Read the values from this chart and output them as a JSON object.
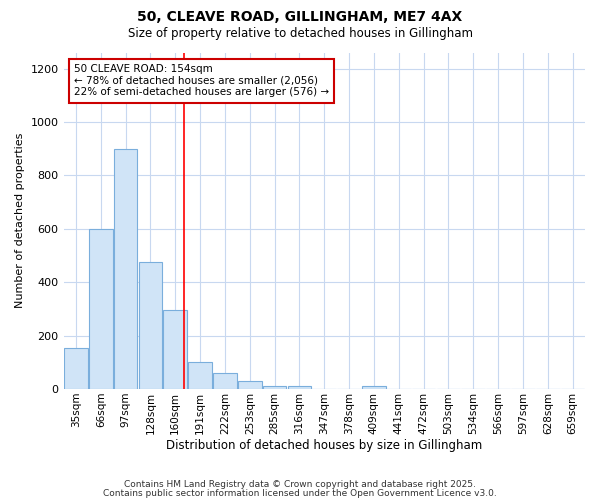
{
  "title1": "50, CLEAVE ROAD, GILLINGHAM, ME7 4AX",
  "title2": "Size of property relative to detached houses in Gillingham",
  "xlabel": "Distribution of detached houses by size in Gillingham",
  "ylabel": "Number of detached properties",
  "bar_labels": [
    "35sqm",
    "66sqm",
    "97sqm",
    "128sqm",
    "160sqm",
    "191sqm",
    "222sqm",
    "253sqm",
    "285sqm",
    "316sqm",
    "347sqm",
    "378sqm",
    "409sqm",
    "441sqm",
    "472sqm",
    "503sqm",
    "534sqm",
    "566sqm",
    "597sqm",
    "628sqm",
    "659sqm"
  ],
  "bar_values": [
    155,
    600,
    900,
    475,
    295,
    100,
    60,
    30,
    10,
    10,
    0,
    0,
    10,
    0,
    0,
    0,
    0,
    0,
    0,
    0,
    0
  ],
  "bar_color": "#d0e4f7",
  "bar_edge_color": "#7aaedc",
  "grid_color": "#c8d8f0",
  "background_color": "#ffffff",
  "red_line_x": 4.35,
  "annotation_text": "50 CLEAVE ROAD: 154sqm\n← 78% of detached houses are smaller (2,056)\n22% of semi-detached houses are larger (576) →",
  "annotation_box_color": "#ffffff",
  "annotation_box_edge": "#cc0000",
  "ylim": [
    0,
    1260
  ],
  "yticks": [
    0,
    200,
    400,
    600,
    800,
    1000,
    1200
  ],
  "footnote1": "Contains HM Land Registry data © Crown copyright and database right 2025.",
  "footnote2": "Contains public sector information licensed under the Open Government Licence v3.0."
}
